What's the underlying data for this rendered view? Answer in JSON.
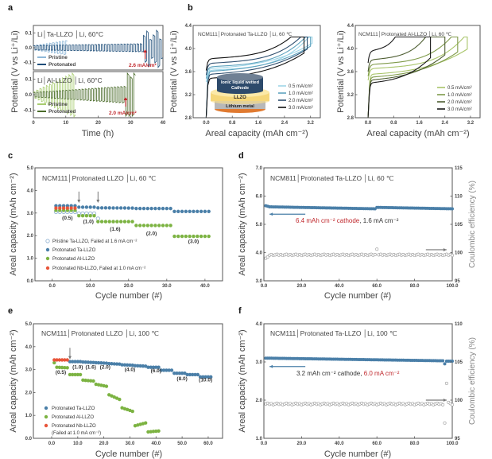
{
  "panel_labels": [
    "a",
    "b",
    "c",
    "d",
    "e",
    "f"
  ],
  "chart_data": [
    {
      "id": "a",
      "type": "line",
      "xlabel": "Time (h)",
      "ylabel": "Potential (V vs Li⁺/Li)",
      "xlim": [
        0,
        40
      ],
      "xticks": [
        "0",
        "10",
        "20",
        "30",
        "40"
      ],
      "subplots": [
        {
          "title": "Li│Ta-LLZO │Li, 60°C",
          "ylim": [
            -0.15,
            0.15
          ],
          "yticks": [
            "-0.1",
            "0.0",
            "0.1"
          ],
          "series": [
            {
              "name": "Pristine",
              "color": "#8fb8d8",
              "end_h": 10.5,
              "amp_start": 0.015,
              "amp_end": 0.05,
              "spike_from_h": 99
            },
            {
              "name": "Protonated",
              "color": "#1f4e79",
              "end_h": 40,
              "amp_start": 0.015,
              "amp_end": 0.03,
              "spike_from_h": 34
            }
          ],
          "annotation": {
            "text": "2.6 mA/cm²",
            "x": 34.5
          }
        },
        {
          "title": "Li│Al-LLZO │Li, 60°C",
          "ylim": [
            -0.15,
            0.15
          ],
          "yticks": [
            "-0.1",
            "0.0",
            "0.1"
          ],
          "series": [
            {
              "name": "Pristine",
              "color": "#a8cc70",
              "end_h": 13,
              "amp_start": 0.02,
              "amp_end": 0.15,
              "spike_from_h": 99
            },
            {
              "name": "Protonated",
              "color": "#4a6b2a",
              "end_h": 31.5,
              "amp_start": 0.015,
              "amp_end": 0.06,
              "spike_from_h": 28.5
            }
          ],
          "annotation": {
            "text": "2.0 mA/cm²",
            "x": 28.5
          }
        }
      ]
    },
    {
      "id": "b1",
      "type": "line",
      "title": "NCM111│Protonated Ta-LLZO │Li, 60 ℃",
      "xlabel": "Areal capacity (mAh cm⁻²)",
      "ylabel": "Potential (V vs Li⁺/Li)",
      "xlim": [
        -0.4,
        3.5
      ],
      "ylim": [
        2.8,
        4.4
      ],
      "xticks": [
        0.0,
        0.8,
        1.6,
        2.4,
        3.2
      ],
      "yticks": [
        2.8,
        3.2,
        3.6,
        4.0,
        4.4
      ],
      "series": [
        {
          "name": "0.5 mA/cm²",
          "color": "#9fd6e8",
          "charge_plateau_V": 3.62,
          "discharge_V": 3.65,
          "cv_start_mAh": 3.15,
          "capacity_mAh": 3.25
        },
        {
          "name": "1.0 mA/cm²",
          "color": "#5fa3bf",
          "charge_plateau_V": 3.68,
          "discharge_V": 3.6,
          "cv_start_mAh": 3.05,
          "capacity_mAh": 3.2
        },
        {
          "name": "2.0 mA/cm²",
          "color": "#2f4f6f",
          "charge_plateau_V": 3.74,
          "discharge_V": 3.55,
          "cv_start_mAh": 2.9,
          "capacity_mAh": 3.1
        },
        {
          "name": "3.0 mA/cm²",
          "color": "#111111",
          "charge_plateau_V": 3.82,
          "discharge_V": 3.48,
          "cv_start_mAh": 2.6,
          "capacity_mAh": 3.0
        }
      ],
      "inset": {
        "cathode": "Ionic liquid wetted",
        "cathode2": "Cathode",
        "electrolyte": "LLZO",
        "anode": "Lithium metal"
      }
    },
    {
      "id": "b2",
      "type": "line",
      "title": "NCM111│Protonated Al-LLZO │Li, 60 ℃",
      "xlabel": "Areal capacity (mAh cm⁻²)",
      "ylabel": "Potential (V vs Li⁺/Li)",
      "xlim": [
        -0.4,
        3.5
      ],
      "ylim": [
        2.8,
        4.4
      ],
      "xticks": [
        0.0,
        0.8,
        1.6,
        2.4,
        3.2
      ],
      "yticks": [
        2.8,
        3.2,
        3.6,
        4.0,
        4.4
      ],
      "series": [
        {
          "name": "0.5 mA/cm²",
          "color": "#a9c56a",
          "charge_plateau_V": 3.65,
          "discharge_V": 3.55,
          "cv_start_mAh": 3.0,
          "capacity_mAh": 3.1
        },
        {
          "name": "1.0 mA/cm²",
          "color": "#7f9a4a",
          "charge_plateau_V": 3.72,
          "discharge_V": 3.5,
          "cv_start_mAh": 2.6,
          "capacity_mAh": 2.8
        },
        {
          "name": "2.0 mA/cm²",
          "color": "#4e5e32",
          "charge_plateau_V": 3.8,
          "discharge_V": 3.45,
          "cv_start_mAh": 1.8,
          "capacity_mAh": 2.4
        },
        {
          "name": "3.0 mA/cm²",
          "color": "#1a1a1a",
          "charge_plateau_V": 3.95,
          "discharge_V": 3.4,
          "cv_start_mAh": 0.85,
          "capacity_mAh": 1.95
        }
      ]
    },
    {
      "id": "c",
      "type": "scatter",
      "title": "NCM111│Protonated LLZO │Li, 60 ℃",
      "xlabel": "Cycle number (#)",
      "ylabel": "Areal capacity (mAh cm⁻²)",
      "xlim": [
        -4.5,
        44.6
      ],
      "ylim": [
        0,
        5
      ],
      "xticks": [
        0,
        10,
        20,
        30,
        40
      ],
      "yticks": [
        "0.0",
        "1.0",
        "2.0",
        "3.0",
        "4.0",
        "5.0"
      ],
      "series": [
        {
          "name": "Pristine Ta-LLZO, Failed at 1.6 mA cm⁻²",
          "color": "#8fb0d0",
          "open": true,
          "segments": [
            [
              1,
              6,
              3.05,
              3.05
            ],
            [
              7,
              11,
              2.98,
              2.98
            ],
            [
              12,
              12,
              2.75,
              2.75
            ]
          ]
        },
        {
          "name": "Protonated Ta-LLZO",
          "color": "#4a7fa8",
          "segments": [
            [
              1,
              6,
              3.32,
              3.32
            ],
            [
              7,
              11,
              3.26,
              3.26
            ],
            [
              12,
              21,
              3.23,
              3.22
            ],
            [
              22,
              31,
              3.2,
              3.2
            ],
            [
              32,
              41,
              3.07,
              3.07
            ]
          ]
        },
        {
          "name": "Protonated Al-LLZO",
          "color": "#7cb342",
          "segments": [
            [
              1,
              6,
              3.12,
              3.12
            ],
            [
              7,
              11,
              2.88,
              2.88
            ],
            [
              12,
              21,
              2.62,
              2.62
            ],
            [
              22,
              31,
              2.45,
              2.45
            ],
            [
              32,
              41,
              1.97,
              1.97
            ]
          ]
        },
        {
          "name": "Protonated Nb-LLZO, Failed at 1.0 mA cm⁻²",
          "color": "#e8553a",
          "segments": [
            [
              1,
              6,
              3.22,
              3.22
            ]
          ]
        }
      ],
      "rate_labels": [
        {
          "text": "(0.5)",
          "x": 4,
          "y": 2.72
        },
        {
          "text": "(1.0)",
          "x": 9.5,
          "y": 2.55
        },
        {
          "text": "(1.6)",
          "x": 16.5,
          "y": 2.22
        },
        {
          "text": "(2.0)",
          "x": 26,
          "y": 2.02
        },
        {
          "text": "(3.0)",
          "x": 37,
          "y": 1.68
        }
      ],
      "arrows_at_cycle": [
        7,
        12
      ]
    },
    {
      "id": "d",
      "type": "scatter",
      "title": "NCM811│Protonated Ta-LLZO │Li, 60 ℃",
      "xlabel": "Cycle number (#)",
      "ylabel": "Areal capacity (mAh cm⁻²)",
      "ylabel_right": "Coulombic efficiency (%)",
      "xlim": [
        0,
        100
      ],
      "ylim": [
        3,
        7
      ],
      "ylim_right": [
        95,
        115
      ],
      "xticks": [
        0,
        20,
        40,
        60,
        80,
        100
      ],
      "yticks": [
        "3.0",
        "4.0",
        "5.0",
        "6.0",
        "7.0"
      ],
      "yticks_right": [
        "95",
        "100",
        "105",
        "110",
        "115"
      ],
      "capacity": {
        "color": "#4a7fa8",
        "segments": [
          [
            1,
            2,
            5.66,
            5.64
          ],
          [
            3,
            59,
            5.62,
            5.55
          ],
          [
            60,
            100,
            5.6,
            5.55
          ]
        ]
      },
      "ce": {
        "color": "#999999",
        "value": 99.6,
        "outliers": [
          [
            1,
            99.0
          ],
          [
            2,
            99.2
          ],
          [
            60,
            100.6
          ]
        ]
      },
      "annotation": {
        "red": "6.4 mAh cm⁻² cathode",
        "rest": ", 1.6 mA cm⁻²"
      }
    },
    {
      "id": "e",
      "type": "scatter",
      "title": "NCM111│Protonated LLZO │Li, 100 ℃",
      "xlabel": "Cycle number (#)",
      "ylabel": "Areal capacity (mAh cm⁻²)",
      "xlim": [
        -7,
        65.5
      ],
      "ylim": [
        0,
        5
      ],
      "xticks": [
        0,
        10,
        20,
        30,
        40,
        50,
        60
      ],
      "yticks": [
        "0.0",
        "1.0",
        "2.0",
        "3.0",
        "4.0",
        "5.0"
      ],
      "series": [
        {
          "name": "Protonated Ta-LLZO",
          "color": "#4a7fa8",
          "segments": [
            [
              7,
              11,
              3.35,
              3.35
            ],
            [
              12,
              16,
              3.33,
              3.31
            ],
            [
              17,
              21,
              3.3,
              3.28
            ],
            [
              22,
              26,
              3.26,
              3.24
            ],
            [
              27,
              31,
              3.21,
              3.19
            ],
            [
              32,
              36,
              3.17,
              3.15
            ],
            [
              37,
              41,
              3.1,
              3.1
            ],
            [
              42,
              46,
              2.97,
              2.97
            ],
            [
              47,
              51,
              2.84,
              2.84
            ],
            [
              52,
              56,
              2.78,
              2.78
            ],
            [
              57,
              61,
              2.68,
              2.68
            ]
          ]
        },
        {
          "name": "Protonated Al-LLZO",
          "color": "#7cb342",
          "segments": [
            [
              1,
              1,
              3.3,
              3.3
            ],
            [
              2,
              6,
              3.1,
              3.08
            ],
            [
              7,
              11,
              2.78,
              2.78
            ],
            [
              12,
              16,
              2.54,
              2.5
            ],
            [
              17,
              21,
              2.36,
              2.27
            ],
            [
              22,
              26,
              1.9,
              1.7
            ],
            [
              27,
              31,
              1.33,
              1.18
            ],
            [
              32,
              36,
              0.55,
              0.67
            ],
            [
              37,
              41,
              0.28,
              0.32
            ]
          ]
        },
        {
          "name": "Protonated Nb-LLZO",
          "name2": "(Failed at 1.0 mA cm⁻²)",
          "color": "#e8553a",
          "segments": [
            [
              1,
              6,
              3.42,
              3.42
            ]
          ]
        }
      ],
      "rate_labels": [
        {
          "text": "(0.5)",
          "x": 3.5,
          "y": 2.82
        },
        {
          "text": "(1.0)",
          "x": 10,
          "y": 3.03
        },
        {
          "text": "(1.6)",
          "x": 15,
          "y": 3.03
        },
        {
          "text": "(2.0)",
          "x": 20.5,
          "y": 3.03
        },
        {
          "text": "(4.0)",
          "x": 30,
          "y": 2.93
        },
        {
          "text": "(6.0)",
          "x": 40,
          "y": 2.88
        },
        {
          "text": "(8.0)",
          "x": 50,
          "y": 2.53
        },
        {
          "text": "(10.0)",
          "x": 59,
          "y": 2.48
        }
      ],
      "arrows_at_cycle": [
        7
      ]
    },
    {
      "id": "f",
      "type": "scatter",
      "title": "NCM111│Protonated Ta-LLZO │Li, 100 ℃",
      "xlabel": "Cycle number (#)",
      "ylabel": "Areal capacity (mAh cm⁻²)",
      "ylabel_right": "Coulombic efficiency (%)",
      "xlim": [
        0,
        100
      ],
      "ylim": [
        1,
        4
      ],
      "ylim_right": [
        95,
        110
      ],
      "xticks": [
        0,
        20,
        40,
        60,
        80,
        100
      ],
      "yticks": [
        "1.0",
        "2.0",
        "3.0",
        "4.0"
      ],
      "yticks_right": [
        "95",
        "100",
        "105",
        "110"
      ],
      "capacity": {
        "color": "#4a7fa8",
        "segments": [
          [
            1,
            95,
            3.1,
            3.03
          ],
          [
            96,
            96,
            2.95,
            2.95
          ],
          [
            97,
            100,
            3.02,
            3.02
          ]
        ]
      },
      "ce": {
        "color": "#999999",
        "value": 99.5,
        "outliers": [
          [
            96,
            97.0
          ],
          [
            97,
            102.2
          ],
          [
            98,
            99.7
          ]
        ]
      },
      "annotation": {
        "rest": "3.2 mAh cm⁻² cathode, ",
        "red": "6.0 mA cm⁻²"
      }
    }
  ]
}
